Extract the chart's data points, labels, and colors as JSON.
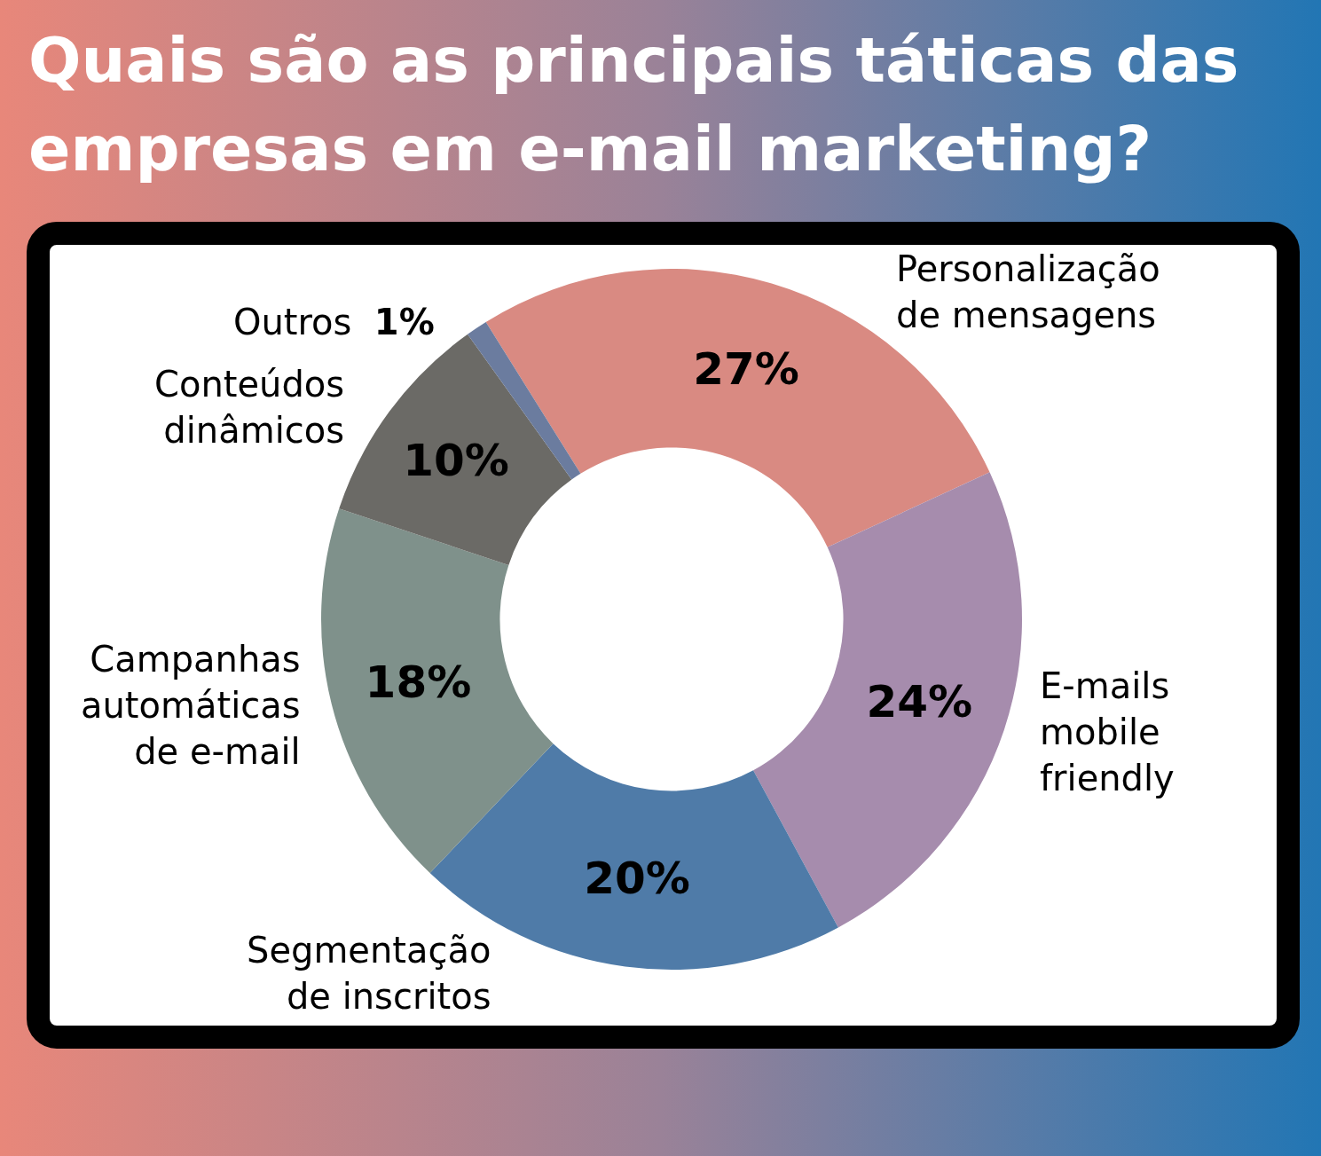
{
  "chart_data": {
    "type": "donut",
    "title": "Quais são as principais táticas das empresas em e-mail marketing?",
    "categories": [
      "Personalização de mensagens",
      "E-mails mobile friendly",
      "Segmentação de inscritos",
      "Campanhas automáticas de e-mail",
      "Conteúdos dinâmicos",
      "Outros"
    ],
    "values": [
      27,
      24,
      20,
      18,
      10,
      1
    ],
    "value_labels": [
      "27%",
      "24%",
      "20%",
      "18%",
      "10%",
      "1%"
    ],
    "colors": [
      "#d98a82",
      "#a68cad",
      "#4f7ba8",
      "#7f918b",
      "#6b6a66",
      "#6b7c9f"
    ],
    "legend": false
  }
}
